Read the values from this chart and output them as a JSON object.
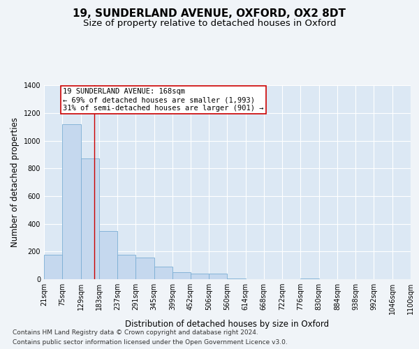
{
  "title": "19, SUNDERLAND AVENUE, OXFORD, OX2 8DT",
  "subtitle": "Size of property relative to detached houses in Oxford",
  "xlabel": "Distribution of detached houses by size in Oxford",
  "ylabel": "Number of detached properties",
  "footnote1": "Contains HM Land Registry data © Crown copyright and database right 2024.",
  "footnote2": "Contains public sector information licensed under the Open Government Licence v3.0.",
  "bin_edges": [
    21,
    75,
    129,
    183,
    237,
    291,
    345,
    399,
    452,
    506,
    560,
    614,
    668,
    722,
    776,
    830,
    884,
    938,
    992,
    1046,
    1100
  ],
  "bin_labels": [
    "21sqm",
    "75sqm",
    "129sqm",
    "183sqm",
    "237sqm",
    "291sqm",
    "345sqm",
    "399sqm",
    "452sqm",
    "506sqm",
    "560sqm",
    "614sqm",
    "668sqm",
    "722sqm",
    "776sqm",
    "830sqm",
    "884sqm",
    "938sqm",
    "992sqm",
    "1046sqm",
    "1100sqm"
  ],
  "values": [
    175,
    1120,
    875,
    350,
    175,
    155,
    90,
    48,
    40,
    38,
    5,
    0,
    0,
    0,
    5,
    0,
    0,
    0,
    0,
    0
  ],
  "bar_color": "#c5d8ee",
  "bar_edge_color": "#7aadd4",
  "property_line_x": 168,
  "property_line_color": "#cc0000",
  "annotation_lines": [
    "19 SUNDERLAND AVENUE: 168sqm",
    "← 69% of detached houses are smaller (1,993)",
    "31% of semi-detached houses are larger (901) →"
  ],
  "annotation_box_edgecolor": "#cc0000",
  "ylim": [
    0,
    1400
  ],
  "yticks": [
    0,
    200,
    400,
    600,
    800,
    1000,
    1200,
    1400
  ],
  "bg_color": "#f0f4f8",
  "plot_bg_color": "#dce8f4",
  "grid_color": "#ffffff",
  "title_fontsize": 11,
  "subtitle_fontsize": 9.5,
  "axis_label_fontsize": 8.5,
  "tick_fontsize": 7,
  "annot_fontsize": 7.5,
  "footnote_fontsize": 6.5
}
